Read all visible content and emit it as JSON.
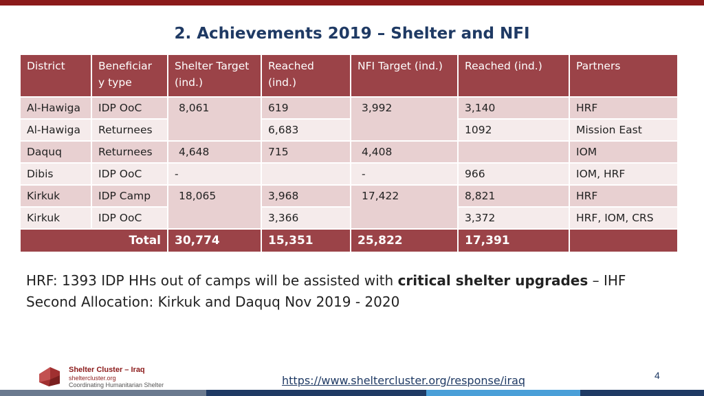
{
  "title": "2. Achievements 2019 – Shelter and NFI",
  "table": {
    "headers": [
      "District",
      "Beneficiar y type",
      "Shelter Target (ind.)",
      "Reached (ind.)",
      "NFI Target (ind.)",
      "Reached (ind.)",
      "Partners"
    ],
    "rows": [
      {
        "district": "Al-Hawiga",
        "type": "IDP OoC",
        "shelter_target": "8,061",
        "shelter_reached": "619",
        "nfi_target": "3,992",
        "nfi_reached": "3,140",
        "partners": "HRF"
      },
      {
        "district": "Al-Hawiga",
        "type": "Returnees",
        "shelter_reached": "6,683",
        "nfi_reached": "1092",
        "partners": "Mission East"
      },
      {
        "district": "Daquq",
        "type": "Returnees",
        "shelter_target": "4,648",
        "shelter_reached": "715",
        "nfi_target": "4,408",
        "nfi_reached": "",
        "partners": "IOM"
      },
      {
        "district": "Dibis",
        "type": "IDP OoC",
        "shelter_target": "-",
        "shelter_reached": "",
        "nfi_target": "-",
        "nfi_reached": "966",
        "partners": "IOM, HRF"
      },
      {
        "district": "Kirkuk",
        "type": "IDP Camp",
        "shelter_target": "18,065",
        "shelter_reached": "3,968",
        "nfi_target": "17,422",
        "nfi_reached": "8,821",
        "partners": "HRF"
      },
      {
        "district": "Kirkuk",
        "type": "IDP OoC",
        "shelter_reached": "3,366",
        "nfi_reached": "3,372",
        "partners": "HRF, IOM, CRS"
      }
    ],
    "total": {
      "label": "Total",
      "shelter_target": "30,774",
      "shelter_reached": "15,351",
      "nfi_target": "25,822",
      "nfi_reached": "17,391",
      "partners": ""
    }
  },
  "note": {
    "part1": "HRF: 1393 IDP HHs out of camps will be assisted with ",
    "bold": "critical shelter upgrades",
    "part2": " – IHF Second Allocation: Kirkuk and Daquq Nov 2019 - 2020"
  },
  "footer": {
    "org_name": "Shelter Cluster – Iraq",
    "org_url": "sheltercluster.org",
    "org_tagline": "Coordinating Humanitarian Shelter",
    "link": "https://www.sheltercluster.org/response/iraq",
    "page_number": "4"
  },
  "colors": {
    "header_bg": "#9b4348",
    "row_dark": "#e8d0d1",
    "row_light": "#f5ebeb",
    "title": "#1f3a64",
    "brand": "#8b1a1a"
  }
}
